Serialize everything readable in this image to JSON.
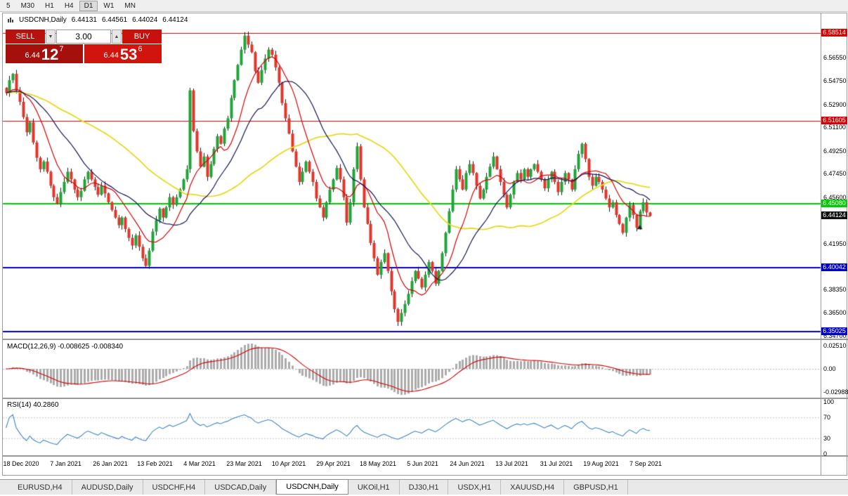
{
  "timeframe_toolbar": {
    "items": [
      "5",
      "M30",
      "H1",
      "H4",
      "D1",
      "W1",
      "MN"
    ],
    "active": "D1"
  },
  "chart_header": {
    "symbol_period": "USDCNH,Daily",
    "open": "6.44131",
    "high": "6.44561",
    "low": "6.44024",
    "close": "6.44124"
  },
  "trade_panel": {
    "sell_label": "SELL",
    "buy_label": "BUY",
    "volume": "3.00",
    "sell_price": {
      "base": "6.44",
      "big": "12",
      "sup": "7"
    },
    "buy_price": {
      "base": "6.44",
      "big": "53",
      "sup": "6"
    }
  },
  "colors": {
    "up": "#1fa438",
    "down": "#e0352b",
    "ma_fast": "#d40000",
    "ma_mid": "#14145a",
    "ma_slow": "#e8d820",
    "macd_hist": "#ababab",
    "macd_signal": "#d40000",
    "rsi_line": "#3d85c8"
  },
  "levels": [
    {
      "label": "6.58514",
      "value": 6.58514,
      "color": "#dd0000",
      "width": 1
    },
    {
      "label": "6.51605",
      "value": 6.51605,
      "color": "#dd0000",
      "width": 1
    },
    {
      "label": "6.45080",
      "value": 6.4508,
      "color": "#00cc00",
      "width": 2
    },
    {
      "label": "6.40042",
      "value": 6.40042,
      "color": "#0000cc",
      "width": 2
    },
    {
      "label": "6.35025",
      "value": 6.35025,
      "color": "#0000cc",
      "width": 2
    }
  ],
  "current_price_tag": {
    "label": "6.44124",
    "value": 6.44124
  },
  "price_axis": {
    "ticks": [
      "6.56550",
      "6.54750",
      "6.52900",
      "6.51100",
      "6.49250",
      "6.47450",
      "6.45600",
      "6.41950",
      "6.38350",
      "6.36500",
      "6.34700"
    ]
  },
  "macd_panel": {
    "name_label": "MACD(12,26,9)",
    "values_label": "-0.008625 -0.008340",
    "ticks": {
      "top": "0.02510",
      "zero": "0.00",
      "bottom": "-0.02988"
    }
  },
  "rsi_panel": {
    "name_label": "RSI(14)",
    "value_label": "40.2860",
    "ticks": [
      "100",
      "70",
      "30",
      "0"
    ],
    "levels": [
      70,
      30
    ]
  },
  "tabs": {
    "items": [
      "EURUSD,H4",
      "AUDUSD,Daily",
      "USDCHF,H4",
      "USDCAD,Daily",
      "USDCNH,Daily",
      "UKOil,H1",
      "DJ30,H1",
      "USDX,H1",
      "XAUUSD,H4",
      "GBPUSD,H1"
    ],
    "active": "USDCNH,Daily"
  },
  "chart_data": {
    "type": "candlestick",
    "symbol": "USDCNH",
    "period": "Daily",
    "title": "USDCNH,Daily",
    "last_bar": {
      "open": 6.44131,
      "high": 6.44561,
      "low": 6.44024,
      "close": 6.44124
    },
    "x_labels": [
      "18 Dec 2020",
      "7 Jan 2021",
      "26 Jan 2021",
      "13 Feb 2021",
      "4 Mar 2021",
      "23 Mar 2021",
      "10 Apr 2021",
      "29 Apr 2021",
      "18 May 2021",
      "5 Jun 2021",
      "24 Jun 2021",
      "13 Jul 2021",
      "31 Jul 2021",
      "19 Aug 2021",
      "7 Sep 2021"
    ],
    "y_range": [
      6.3448,
      6.6
    ],
    "horizontal_lines": [
      6.58514,
      6.51605,
      6.4508,
      6.40042,
      6.35025
    ],
    "moving_averages": [
      {
        "period": 10,
        "color": "#d40000"
      },
      {
        "period": 21,
        "color": "#14145a"
      },
      {
        "period": 50,
        "color": "#e8d820"
      }
    ],
    "indicators": {
      "macd": {
        "params": [
          12,
          26,
          9
        ],
        "values": [
          -0.008625,
          -0.00834
        ],
        "scale": [
          0.0251,
          -0.02988
        ]
      },
      "rsi": {
        "period": 14,
        "value": 40.286,
        "levels": [
          100,
          70,
          30,
          0
        ]
      }
    },
    "closes": [
      6.538,
      6.548,
      6.553,
      6.54,
      6.531,
      6.519,
      6.507,
      6.515,
      6.499,
      6.487,
      6.478,
      6.484,
      6.476,
      6.465,
      6.456,
      6.451,
      6.46,
      6.468,
      6.476,
      6.47,
      6.462,
      6.456,
      6.461,
      6.47,
      6.476,
      6.47,
      6.464,
      6.458,
      6.465,
      6.459,
      6.452,
      6.446,
      6.44,
      6.434,
      6.44,
      6.431,
      6.424,
      6.418,
      6.426,
      6.417,
      6.408,
      6.402,
      6.414,
      6.429,
      6.438,
      6.447,
      6.44,
      6.448,
      6.456,
      6.45,
      6.456,
      6.462,
      6.47,
      6.478,
      6.54,
      6.508,
      6.492,
      6.48,
      6.488,
      6.472,
      6.482,
      6.494,
      6.504,
      6.498,
      6.51,
      6.518,
      6.534,
      6.548,
      6.56,
      6.572,
      6.583,
      6.576,
      6.57,
      6.555,
      6.546,
      6.556,
      6.565,
      6.572,
      6.568,
      6.558,
      6.546,
      6.53,
      6.518,
      6.506,
      6.492,
      6.48,
      6.468,
      6.476,
      6.484,
      6.476,
      6.468,
      6.455,
      6.448,
      6.44,
      6.452,
      6.462,
      6.47,
      6.479,
      6.47,
      6.456,
      6.436,
      6.452,
      6.478,
      6.496,
      6.47,
      6.448,
      6.435,
      6.42,
      6.408,
      6.395,
      6.405,
      6.412,
      6.398,
      6.382,
      6.368,
      6.358,
      6.365,
      6.372,
      6.38,
      6.39,
      6.398,
      6.392,
      6.385,
      6.395,
      6.405,
      6.398,
      6.388,
      6.398,
      6.412,
      6.428,
      6.445,
      6.462,
      6.478,
      6.47,
      6.462,
      6.475,
      6.482,
      6.475,
      6.465,
      6.455,
      6.462,
      6.472,
      6.48,
      6.488,
      6.478,
      6.468,
      6.458,
      6.448,
      6.458,
      6.468,
      6.475,
      6.47,
      6.478,
      6.472,
      6.478,
      6.482,
      6.476,
      6.47,
      6.463,
      6.47,
      6.476,
      6.468,
      6.46,
      6.468,
      6.475,
      6.47,
      6.462,
      6.478,
      6.49,
      6.498,
      6.486,
      6.472,
      6.465,
      6.472,
      6.468,
      6.462,
      6.455,
      6.448,
      6.452,
      6.442,
      6.435,
      6.428,
      6.44,
      6.45,
      6.442,
      6.432,
      6.445,
      6.452,
      6.444,
      6.44124
    ]
  }
}
